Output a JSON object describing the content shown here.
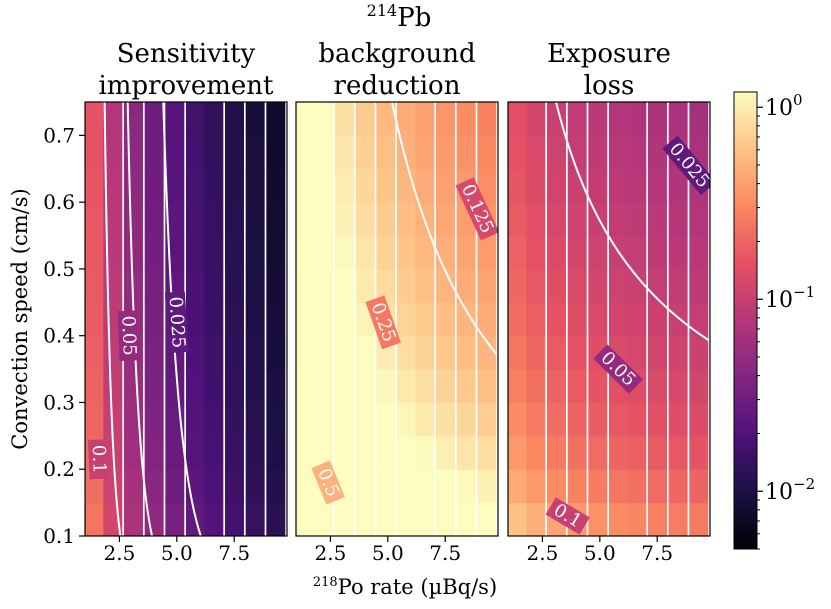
{
  "chart_data": {
    "type": "heatmap",
    "figure_title": {
      "prefix": "214",
      "main": "Pb"
    },
    "ylabel": "Convection speed (cm/s)",
    "xlabel": {
      "prefix": "218",
      "main": "Po rate (µBq/s)"
    },
    "xlim": [
      1,
      9.8
    ],
    "ylim": [
      0.1,
      0.75
    ],
    "xticks": [
      2.5,
      5.0,
      7.5
    ],
    "xtick_labels": [
      "2.5",
      "5.0",
      "7.5"
    ],
    "yticks": [
      0.1,
      0.2,
      0.3,
      0.4,
      0.5,
      0.6,
      0.7
    ],
    "ytick_labels": [
      "0.1",
      "0.2",
      "0.3",
      "0.4",
      "0.5",
      "0.6",
      "0.7"
    ],
    "grid_x_centers": [
      1.4,
      2.2,
      3.1,
      4.0,
      4.9,
      5.8,
      6.6,
      7.5,
      8.4,
      9.3
    ],
    "grid_y_centers": [
      0.125,
      0.175,
      0.225,
      0.275,
      0.325,
      0.375,
      0.425,
      0.475,
      0.525,
      0.575,
      0.625,
      0.675,
      0.725
    ],
    "colorbar": {
      "scale": "log",
      "range": [
        0.005,
        1.2
      ],
      "colormap": "magma",
      "ticks": [
        1,
        0.1,
        0.01
      ],
      "tick_labels": [
        {
          "base": "10",
          "exp": "0"
        },
        {
          "base": "10",
          "exp": "−1"
        },
        {
          "base": "10",
          "exp": "−2"
        }
      ]
    },
    "panels": [
      {
        "title": [
          "Sensitivity",
          "improvement"
        ],
        "field": {
          "a": 0.25,
          "p": 1.6,
          "q": 0.25
        },
        "contours": [
          {
            "level": 0.1,
            "label": "0.1",
            "label_x": 1.6,
            "label_y": 0.215
          },
          {
            "level": 0.05,
            "label": "0.05",
            "label_x": 2.9,
            "label_y": 0.4
          },
          {
            "level": 0.025,
            "label": "0.025",
            "label_x": 5.0,
            "label_y": 0.42
          }
        ]
      },
      {
        "title": [
          "background",
          "reduction"
        ],
        "field": {
          "a": 2.0,
          "p": 1.0,
          "q": 0.9
        },
        "contours": [
          {
            "level": 0.5,
            "label": "0.5",
            "label_x": 2.4,
            "label_y": 0.18
          },
          {
            "level": 0.25,
            "label": "0.25",
            "label_x": 4.8,
            "label_y": 0.42
          },
          {
            "level": 0.125,
            "label": "0.125",
            "label_x": 8.9,
            "label_y": 0.59
          }
        ]
      },
      {
        "title": [
          "Exposure",
          "loss"
        ],
        "field": {
          "a": 0.132,
          "p": 0.45,
          "q": 0.8
        },
        "contours": [
          {
            "level": 0.1,
            "label": "0.1",
            "label_x": 3.6,
            "label_y": 0.13
          },
          {
            "level": 0.05,
            "label": "0.05",
            "label_x": 5.8,
            "label_y": 0.35
          },
          {
            "level": 0.025,
            "label": "0.025",
            "label_x": 8.9,
            "label_y": 0.655
          }
        ]
      }
    ]
  }
}
